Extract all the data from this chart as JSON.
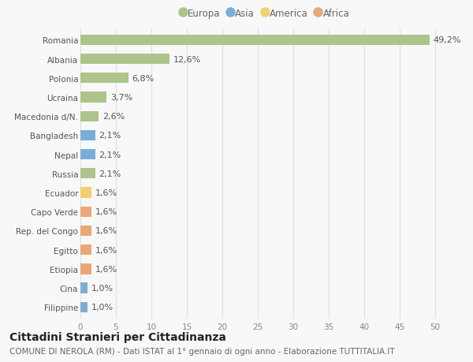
{
  "countries": [
    "Romania",
    "Albania",
    "Polonia",
    "Ucraina",
    "Macedonia d/N.",
    "Bangladesh",
    "Nepal",
    "Russia",
    "Ecuador",
    "Capo Verde",
    "Rep. del Congo",
    "Egitto",
    "Etiopia",
    "Cina",
    "Filippine"
  ],
  "values": [
    49.2,
    12.6,
    6.8,
    3.7,
    2.6,
    2.1,
    2.1,
    2.1,
    1.6,
    1.6,
    1.6,
    1.6,
    1.6,
    1.0,
    1.0
  ],
  "labels": [
    "49,2%",
    "12,6%",
    "6,8%",
    "3,7%",
    "2,6%",
    "2,1%",
    "2,1%",
    "2,1%",
    "1,6%",
    "1,6%",
    "1,6%",
    "1,6%",
    "1,6%",
    "1,0%",
    "1,0%"
  ],
  "continents": [
    "Europa",
    "Europa",
    "Europa",
    "Europa",
    "Europa",
    "Asia",
    "Asia",
    "Europa",
    "America",
    "Africa",
    "Africa",
    "Africa",
    "Africa",
    "Asia",
    "Asia"
  ],
  "continent_colors": {
    "Europa": "#adc48a",
    "Asia": "#7aaed6",
    "America": "#f0d070",
    "Africa": "#e8a878"
  },
  "legend_order": [
    "Europa",
    "Asia",
    "America",
    "Africa"
  ],
  "title": "Cittadini Stranieri per Cittadinanza",
  "subtitle": "COMUNE DI NEROLA (RM) - Dati ISTAT al 1° gennaio di ogni anno - Elaborazione TUTTITALIA.IT",
  "xlim": [
    0,
    52
  ],
  "xticks": [
    0,
    5,
    10,
    15,
    20,
    25,
    30,
    35,
    40,
    45,
    50
  ],
  "background_color": "#f8f8f8",
  "grid_color": "#e0e0e0",
  "bar_height": 0.55,
  "label_fontsize": 8,
  "title_fontsize": 10,
  "subtitle_fontsize": 7.5,
  "tick_fontsize": 7.5,
  "legend_fontsize": 8.5
}
